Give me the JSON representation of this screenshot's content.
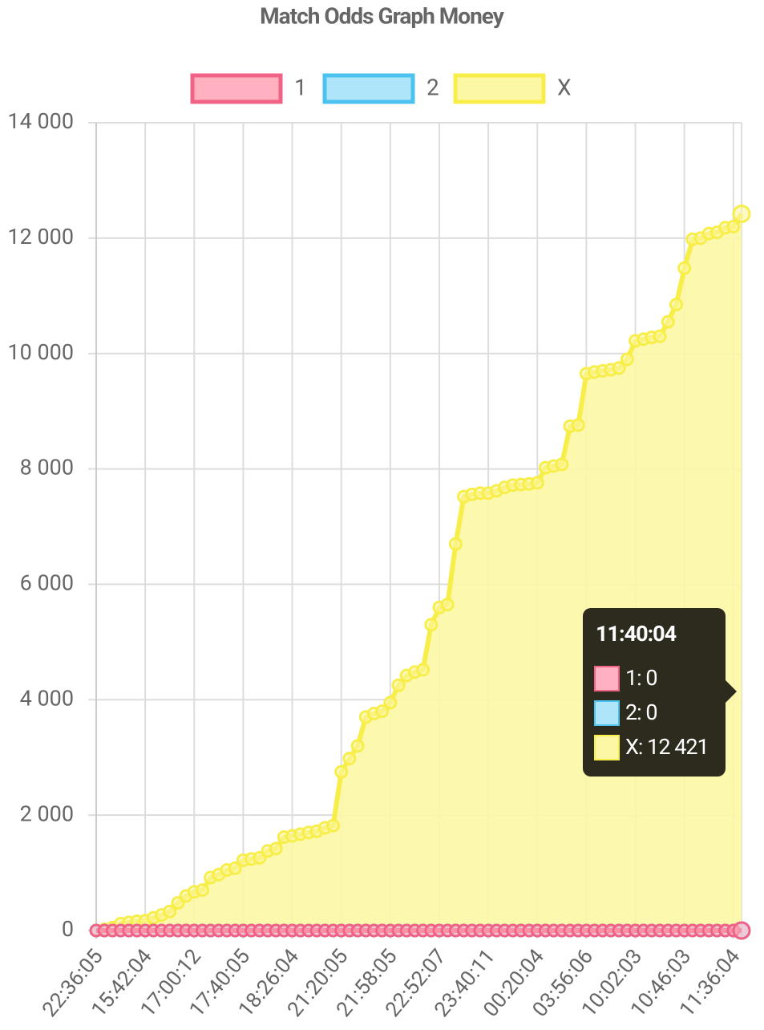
{
  "chart_data": {
    "type": "line",
    "title": "Match Odds Graph Money",
    "categories": [
      "22:36:05",
      null,
      null,
      null,
      null,
      null,
      "15:42:04",
      null,
      null,
      null,
      null,
      null,
      "17:00:12",
      null,
      null,
      null,
      null,
      null,
      "17:40:05",
      null,
      null,
      null,
      null,
      null,
      "18:26:04",
      null,
      null,
      null,
      null,
      null,
      "21:20:05",
      null,
      null,
      null,
      null,
      null,
      "21:58:05",
      null,
      null,
      null,
      null,
      null,
      "22:52:07",
      null,
      null,
      null,
      null,
      null,
      "23:40:11",
      null,
      null,
      null,
      null,
      null,
      "00:20:04",
      null,
      null,
      null,
      null,
      null,
      "03:56:06",
      null,
      null,
      null,
      null,
      null,
      "10:02:03",
      null,
      null,
      null,
      null,
      null,
      "10:46:03",
      null,
      null,
      null,
      null,
      null,
      "11:36:04",
      "11:40:04"
    ],
    "series": [
      {
        "name": "1",
        "color": "#f06386",
        "fill": "#ffb1c1",
        "values": [
          0,
          0,
          0,
          0,
          0,
          0,
          0,
          0,
          0,
          0,
          0,
          0,
          0,
          0,
          0,
          0,
          0,
          0,
          0,
          0,
          0,
          0,
          0,
          0,
          0,
          0,
          0,
          0,
          0,
          0,
          0,
          0,
          0,
          0,
          0,
          0,
          0,
          0,
          0,
          0,
          0,
          0,
          0,
          0,
          0,
          0,
          0,
          0,
          0,
          0,
          0,
          0,
          0,
          0,
          0,
          0,
          0,
          0,
          0,
          0,
          0,
          0,
          0,
          0,
          0,
          0,
          0,
          0,
          0,
          0,
          0,
          0,
          0,
          0,
          0,
          0,
          0,
          0,
          0,
          0
        ]
      },
      {
        "name": "2",
        "color": "#4cc3ef",
        "fill": "#aee5fa",
        "values": [
          0,
          0,
          0,
          0,
          0,
          0,
          0,
          0,
          0,
          0,
          0,
          0,
          0,
          0,
          0,
          0,
          0,
          0,
          0,
          0,
          0,
          0,
          0,
          0,
          0,
          0,
          0,
          0,
          0,
          0,
          0,
          0,
          0,
          0,
          0,
          0,
          0,
          0,
          0,
          0,
          0,
          0,
          0,
          0,
          0,
          0,
          0,
          0,
          0,
          0,
          0,
          0,
          0,
          0,
          0,
          0,
          0,
          0,
          0,
          0,
          0,
          0,
          0,
          0,
          0,
          0,
          0,
          0,
          0,
          0,
          0,
          0,
          0,
          0,
          0,
          0,
          0,
          0,
          0,
          0
        ]
      },
      {
        "name": "X",
        "color": "#f8ee4a",
        "fill": "#fcf7a4",
        "values": [
          0,
          20,
          50,
          120,
          140,
          160,
          170,
          220,
          270,
          330,
          480,
          600,
          670,
          700,
          920,
          970,
          1050,
          1080,
          1220,
          1240,
          1260,
          1380,
          1420,
          1620,
          1640,
          1670,
          1700,
          1720,
          1780,
          1820,
          2750,
          2980,
          3200,
          3700,
          3760,
          3800,
          3950,
          4250,
          4420,
          4480,
          4520,
          5300,
          5600,
          5650,
          6700,
          7520,
          7560,
          7580,
          7580,
          7620,
          7680,
          7720,
          7730,
          7740,
          7760,
          8020,
          8050,
          8080,
          8740,
          8760,
          9650,
          9680,
          9700,
          9720,
          9750,
          9900,
          10220,
          10250,
          10280,
          10300,
          10550,
          10850,
          11480,
          11980,
          12000,
          12080,
          12100,
          12180,
          12200,
          12421
        ]
      }
    ],
    "ylim": [
      0,
      14000
    ],
    "yticks": [
      0,
      {
        "value": 2000,
        "label": "2 000"
      },
      {
        "value": 4000,
        "label": "4 000"
      },
      {
        "value": 6000,
        "label": "6 000"
      },
      {
        "value": 8000,
        "label": "8 000"
      },
      {
        "value": 10000,
        "label": "10 000"
      },
      {
        "value": 12000,
        "label": "12 000"
      },
      {
        "value": 14000,
        "label": "14 000"
      }
    ],
    "grid": true,
    "legend": "top",
    "tooltip": {
      "items": [
        "1: 0",
        "2: 0",
        "X: 12 421"
      ]
    }
  }
}
